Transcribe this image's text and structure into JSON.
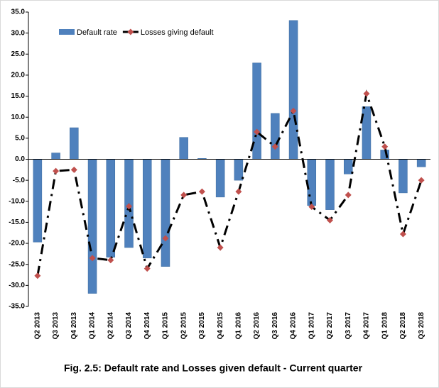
{
  "chart_data": {
    "type": "bar",
    "title": "Fig. 2.5: Default rate and Losses given default - Current quarter",
    "categories": [
      "Q2 2013",
      "Q3 2013",
      "Q4 2013",
      "Q1 2014",
      "Q2 2014",
      "Q3 2014",
      "Q4 2014",
      "Q1 2015",
      "Q2 2015",
      "Q3 2015",
      "Q4 2015",
      "Q1 2016",
      "Q2 2016",
      "Q3 2016",
      "Q4 2016",
      "Q1 2017",
      "Q2 2017",
      "Q3 2017",
      "Q4 2017",
      "Q1 2018",
      "Q2 2018",
      "Q3 2018"
    ],
    "series": [
      {
        "name": "Default rate",
        "type": "bar",
        "color": "#4f81bd",
        "values": [
          -19.7,
          1.5,
          7.5,
          -31.9,
          -23.3,
          -21.0,
          -23.5,
          -25.5,
          5.2,
          0.2,
          -9.0,
          -5.0,
          22.9,
          10.9,
          33.0,
          -11.0,
          -12.0,
          -3.5,
          12.5,
          2.2,
          -8.0,
          -1.8
        ]
      },
      {
        "name": "Losses giving default",
        "type": "line",
        "color": "#000000",
        "marker_color": "#c0504d",
        "values": [
          -27.7,
          -2.8,
          -2.5,
          -23.5,
          -24.0,
          -11.2,
          -26.0,
          -18.8,
          -8.5,
          -7.7,
          -21.0,
          -7.7,
          6.5,
          3.0,
          11.5,
          -11.3,
          -14.5,
          -8.5,
          15.6,
          3.0,
          -17.8,
          -5.0
        ]
      }
    ],
    "ylim": [
      -35,
      35
    ],
    "yticks": [
      {
        "value": -35,
        "label": "-35.0"
      },
      {
        "value": -30,
        "label": "-30.0"
      },
      {
        "value": -25,
        "label": "-25.0"
      },
      {
        "value": -20,
        "label": "-20.0"
      },
      {
        "value": -15,
        "label": "-15.0"
      },
      {
        "value": -10,
        "label": "-10.0"
      },
      {
        "value": -5,
        "label": "-5.0"
      },
      {
        "value": 0,
        "label": "0.0"
      },
      {
        "value": 5,
        "label": "5.0"
      },
      {
        "value": 10,
        "label": "10.0"
      },
      {
        "value": 15,
        "label": "15.0"
      },
      {
        "value": 20,
        "label": "20.0"
      },
      {
        "value": 25,
        "label": "25.0"
      },
      {
        "value": 30,
        "label": "30.0"
      },
      {
        "value": 35,
        "label": "35.0"
      }
    ],
    "grid": false
  }
}
